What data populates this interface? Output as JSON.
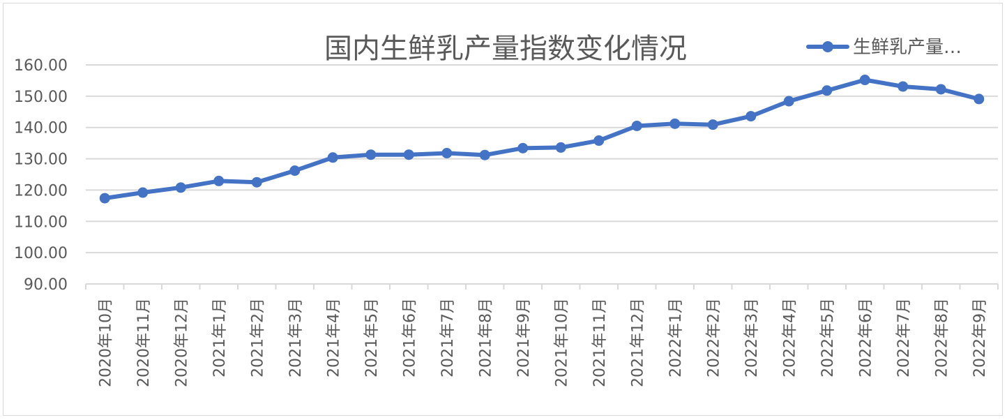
{
  "colors": {
    "series": "#4472c4",
    "grid": "#d9d9d9",
    "text": "#595959",
    "background": "#ffffff"
  },
  "chart_data": {
    "type": "line",
    "title": "国内生鲜乳产量指数变化情况",
    "xlabel": "",
    "ylabel": "",
    "ylim": [
      90,
      160
    ],
    "y_ticks": [
      90,
      100,
      110,
      120,
      130,
      140,
      150,
      160
    ],
    "y_tick_labels": [
      "90.00",
      "100.00",
      "110.00",
      "120.00",
      "130.00",
      "140.00",
      "150.00",
      "160.00"
    ],
    "grid": true,
    "legend": {
      "position": "top-right",
      "label": "生鲜乳产量…"
    },
    "categories": [
      "2020年10月",
      "2020年11月",
      "2020年12月",
      "2021年1月",
      "2021年2月",
      "2021年3月",
      "2021年4月",
      "2021年5月",
      "2021年6月",
      "2021年7月",
      "2021年8月",
      "2021年9月",
      "2021年10月",
      "2021年11月",
      "2021年12月",
      "2022年1月",
      "2022年2月",
      "2022年3月",
      "2022年4月",
      "2022年5月",
      "2022年6月",
      "2022年7月",
      "2022年8月",
      "2022年9月"
    ],
    "series": [
      {
        "name": "生鲜乳产量…",
        "values": [
          117.4,
          119.2,
          120.8,
          122.9,
          122.5,
          126.2,
          130.4,
          131.3,
          131.3,
          131.8,
          131.2,
          133.4,
          133.6,
          135.8,
          140.5,
          141.2,
          140.9,
          143.6,
          148.4,
          151.8,
          155.2,
          153.1,
          152.2,
          149.1
        ]
      }
    ]
  }
}
